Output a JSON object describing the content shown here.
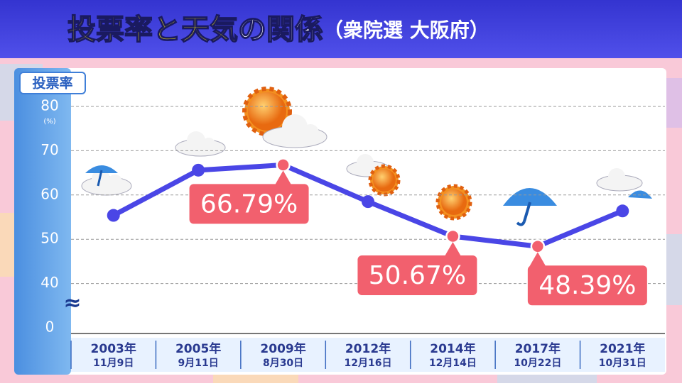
{
  "header": {
    "title_highlight": "投票率と天気",
    "title_rest": "の関係",
    "subtitle": "（衆院選 大阪府）"
  },
  "chart_data": {
    "type": "line",
    "y_label": "投票率",
    "y_unit": "(%)",
    "axis_break_symbol": "≈",
    "categories": [
      "2003年",
      "2005年",
      "2009年",
      "2012年",
      "2014年",
      "2017年",
      "2021年"
    ],
    "category_dates": [
      "11月9日",
      "9月11日",
      "8月30日",
      "12月16日",
      "12月14日",
      "10月22日",
      "10月31日"
    ],
    "series": [
      {
        "name": "投票率",
        "color": "#4a46e6",
        "highlight_color": "#f2606e",
        "values": [
          55.4,
          65.6,
          66.79,
          58.5,
          50.67,
          48.39,
          56.4
        ],
        "value_labels": [
          null,
          null,
          "66.79%",
          null,
          "50.67%",
          "48.39%",
          null
        ]
      }
    ],
    "ylim": [
      0,
      80
    ],
    "yticks": [
      0,
      40,
      50,
      60,
      70,
      80
    ],
    "grid": true
  }
}
